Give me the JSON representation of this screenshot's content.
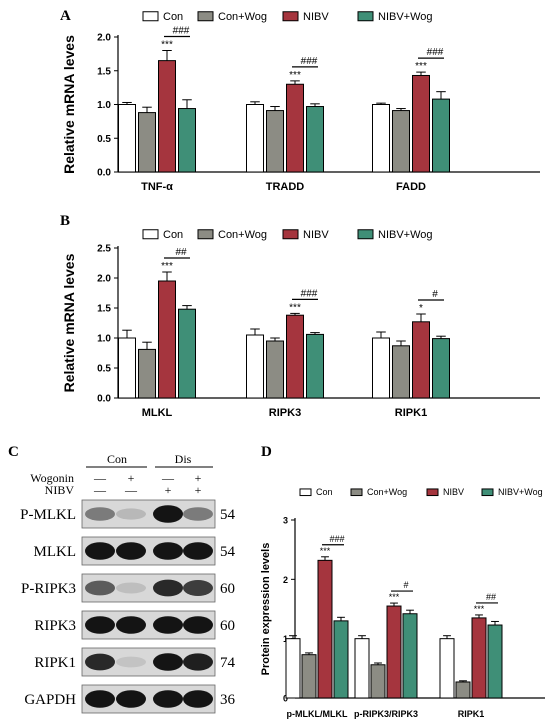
{
  "colors": {
    "Con": "#ffffff",
    "Con+Wog": "#8c8c84",
    "NIBV": "#a5353e",
    "NIBV+Wog": "#3f8f77"
  },
  "chart_data": [
    {
      "panel": "A",
      "type": "bar",
      "ylabel": "Relative mRNA leves",
      "ylim": [
        0,
        2.0
      ],
      "yticks": [
        "0.0",
        "0.5",
        "1.0",
        "1.5",
        "2.0"
      ],
      "legend_position": "top",
      "categories": [
        "TNF-α",
        "TRADD",
        "FADD"
      ],
      "series": [
        {
          "name": "Con",
          "values": [
            1.0,
            1.0,
            1.0
          ],
          "errors": [
            0.03,
            0.04,
            0.02
          ]
        },
        {
          "name": "Con+Wog",
          "values": [
            0.88,
            0.91,
            0.91
          ],
          "errors": [
            0.08,
            0.06,
            0.03
          ]
        },
        {
          "name": "NIBV",
          "values": [
            1.65,
            1.3,
            1.43
          ],
          "errors": [
            0.15,
            0.05,
            0.05
          ]
        },
        {
          "name": "NIBV+Wog",
          "values": [
            0.94,
            0.97,
            1.08
          ],
          "errors": [
            0.13,
            0.04,
            0.11
          ]
        }
      ],
      "annotations": [
        {
          "category": 0,
          "star": "***",
          "hash": "###"
        },
        {
          "category": 1,
          "star": "***",
          "hash": "###"
        },
        {
          "category": 2,
          "star": "***",
          "hash": "###"
        }
      ]
    },
    {
      "panel": "B",
      "type": "bar",
      "ylabel": "Relative mRNA leves",
      "ylim": [
        0,
        2.5
      ],
      "yticks": [
        "0.0",
        "0.5",
        "1.0",
        "1.5",
        "2.0",
        "2.5"
      ],
      "legend_position": "top",
      "categories": [
        "MLKL",
        "RIPK3",
        "RIPK1"
      ],
      "series": [
        {
          "name": "Con",
          "values": [
            1.0,
            1.05,
            1.0
          ],
          "errors": [
            0.13,
            0.1,
            0.1
          ]
        },
        {
          "name": "Con+Wog",
          "values": [
            0.81,
            0.95,
            0.87
          ],
          "errors": [
            0.12,
            0.05,
            0.08
          ]
        },
        {
          "name": "NIBV",
          "values": [
            1.95,
            1.38,
            1.27
          ],
          "errors": [
            0.15,
            0.03,
            0.13
          ]
        },
        {
          "name": "NIBV+Wog",
          "values": [
            1.48,
            1.06,
            0.99
          ],
          "errors": [
            0.06,
            0.03,
            0.04
          ]
        }
      ],
      "annotations": [
        {
          "category": 0,
          "star": "***",
          "hash": "##"
        },
        {
          "category": 1,
          "star": "***",
          "hash": "###"
        },
        {
          "category": 2,
          "star": "*",
          "hash": "#"
        }
      ]
    },
    {
      "panel": "D",
      "type": "bar",
      "ylabel": "Protein expression levels",
      "ylim": [
        0,
        3
      ],
      "yticks": [
        "0",
        "1",
        "2",
        "3"
      ],
      "legend_position": "top",
      "categories": [
        "p-MLKL/MLKL",
        "p-RIPK3/RIPK3",
        "RIPK1"
      ],
      "series": [
        {
          "name": "Con",
          "values": [
            1.0,
            1.0,
            1.0
          ],
          "errors": [
            0.05,
            0.05,
            0.05
          ]
        },
        {
          "name": "Con+Wog",
          "values": [
            0.73,
            0.56,
            0.27
          ],
          "errors": [
            0.03,
            0.03,
            0.02
          ]
        },
        {
          "name": "NIBV",
          "values": [
            2.32,
            1.55,
            1.35
          ],
          "errors": [
            0.06,
            0.05,
            0.05
          ]
        },
        {
          "name": "NIBV+Wog",
          "values": [
            1.3,
            1.42,
            1.23
          ],
          "errors": [
            0.06,
            0.06,
            0.06
          ]
        }
      ],
      "annotations": [
        {
          "category": 0,
          "star": "***",
          "hash": "###"
        },
        {
          "category": 1,
          "star": "***",
          "hash": "#"
        },
        {
          "category": 2,
          "star": "***",
          "hash": "##"
        }
      ]
    }
  ],
  "blot": {
    "panel": "C",
    "group_labels": [
      "Con",
      "Dis"
    ],
    "treatments": [
      {
        "label": "Wogonin",
        "signs": [
          "—",
          "+",
          "—",
          "+"
        ]
      },
      {
        "label": "NIBV",
        "signs": [
          "—",
          "—",
          "+",
          "+"
        ]
      }
    ],
    "rows": [
      {
        "label": "P-MLKL",
        "kda": "54",
        "intensity": [
          0.45,
          0.15,
          0.95,
          0.45
        ]
      },
      {
        "label": "MLKL",
        "kda": "54",
        "intensity": [
          0.95,
          0.95,
          0.95,
          0.95
        ]
      },
      {
        "label": "P-RIPK3",
        "kda": "60",
        "intensity": [
          0.6,
          0.12,
          0.85,
          0.75
        ]
      },
      {
        "label": "RIPK3",
        "kda": "60",
        "intensity": [
          0.95,
          0.95,
          0.95,
          0.95
        ]
      },
      {
        "label": "RIPK1",
        "kda": "74",
        "intensity": [
          0.85,
          0.1,
          0.95,
          0.9
        ]
      },
      {
        "label": "GAPDH",
        "kda": "36",
        "intensity": [
          0.95,
          0.95,
          0.95,
          0.95
        ]
      }
    ]
  }
}
